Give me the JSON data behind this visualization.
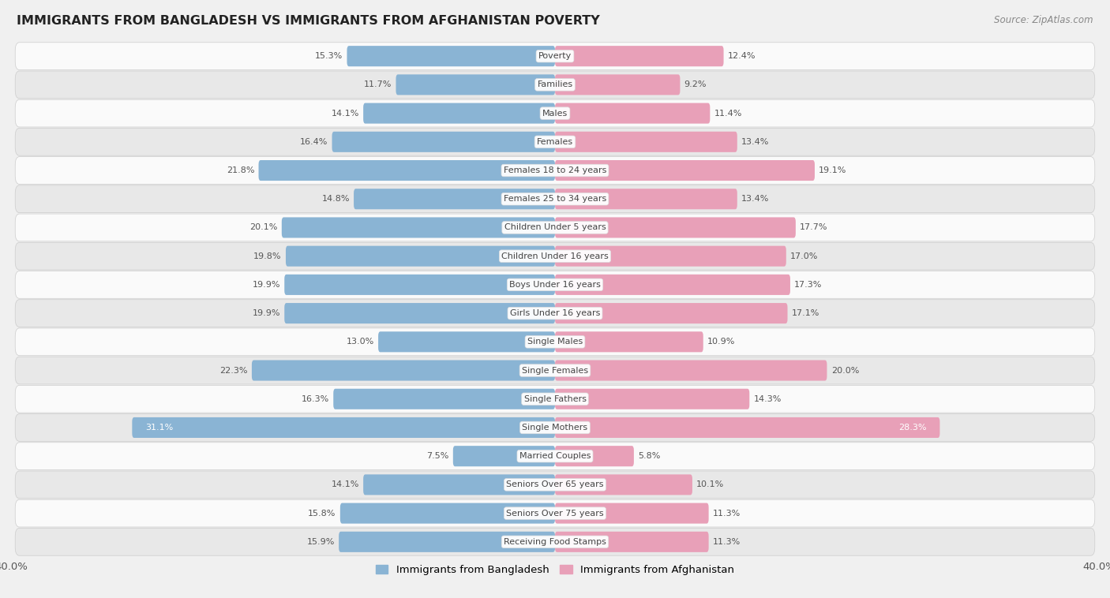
{
  "title": "IMMIGRANTS FROM BANGLADESH VS IMMIGRANTS FROM AFGHANISTAN POVERTY",
  "source": "Source: ZipAtlas.com",
  "categories": [
    "Poverty",
    "Families",
    "Males",
    "Females",
    "Females 18 to 24 years",
    "Females 25 to 34 years",
    "Children Under 5 years",
    "Children Under 16 years",
    "Boys Under 16 years",
    "Girls Under 16 years",
    "Single Males",
    "Single Females",
    "Single Fathers",
    "Single Mothers",
    "Married Couples",
    "Seniors Over 65 years",
    "Seniors Over 75 years",
    "Receiving Food Stamps"
  ],
  "bangladesh_values": [
    15.3,
    11.7,
    14.1,
    16.4,
    21.8,
    14.8,
    20.1,
    19.8,
    19.9,
    19.9,
    13.0,
    22.3,
    16.3,
    31.1,
    7.5,
    14.1,
    15.8,
    15.9
  ],
  "afghanistan_values": [
    12.4,
    9.2,
    11.4,
    13.4,
    19.1,
    13.4,
    17.7,
    17.0,
    17.3,
    17.1,
    10.9,
    20.0,
    14.3,
    28.3,
    5.8,
    10.1,
    11.3,
    11.3
  ],
  "bangladesh_color": "#8ab4d4",
  "afghanistan_color": "#e8a0b8",
  "highlight_row": 13,
  "xlim": 40.0,
  "bar_height": 0.72,
  "background_color": "#f0f0f0",
  "row_color_light": "#fafafa",
  "row_color_dark": "#e8e8e8",
  "legend_bangladesh": "Immigrants from Bangladesh",
  "legend_afghanistan": "Immigrants from Afghanistan",
  "value_color_normal": "#555555",
  "value_color_highlight": "#ffffff",
  "label_bg_color": "#ffffff",
  "label_text_color": "#444444"
}
